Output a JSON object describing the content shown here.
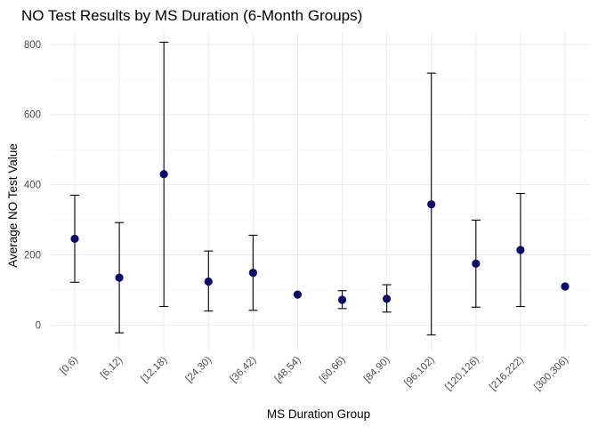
{
  "chart_data": {
    "type": "scatter",
    "title": "NO Test Results by MS Duration (6-Month Groups)",
    "xlabel": "MS Duration Group",
    "ylabel": "Average NO Test Value",
    "categories": [
      "[0,6)",
      "[6,12)",
      "[12,18)",
      "[24,30)",
      "[36,42)",
      "[48,54)",
      "[60,66)",
      "[84,90)",
      "[96,102)",
      "[120,126)",
      "[216,222)",
      "[300,306)"
    ],
    "series": [
      {
        "values": [
          246,
          135,
          430,
          124,
          149,
          87,
          72,
          75,
          344,
          175,
          214,
          110
        ],
        "lower": [
          122,
          -22,
          53,
          40,
          42,
          null,
          47,
          37,
          -28,
          51,
          53,
          null
        ],
        "upper": [
          370,
          292,
          806,
          211,
          256,
          null,
          98,
          115,
          718,
          299,
          375,
          null
        ]
      }
    ],
    "ylim": [
      -75,
      835
    ],
    "yticks": [
      0,
      200,
      400,
      600,
      800
    ],
    "grid": true,
    "point_color": "#0b0b6b",
    "errorbar_color": "#000000"
  }
}
